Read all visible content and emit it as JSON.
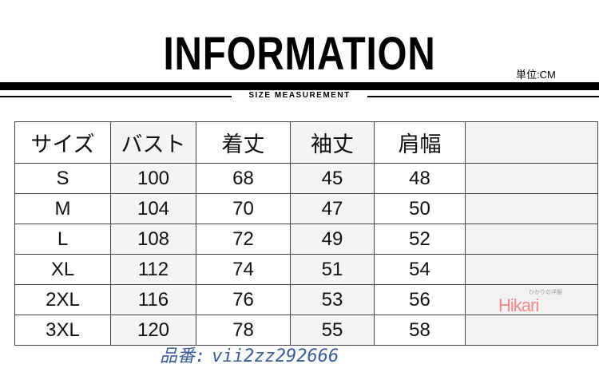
{
  "title": "INFORMATION",
  "unit": "単位:CM",
  "subtitle": "SIZE MEASUREMENT",
  "table": {
    "headers": [
      "サイズ",
      "バスト",
      "着丈",
      "袖丈",
      "肩幅",
      ""
    ],
    "rows": [
      [
        "S",
        "100",
        "68",
        "45",
        "48"
      ],
      [
        "M",
        "104",
        "70",
        "47",
        "50"
      ],
      [
        "L",
        "108",
        "72",
        "49",
        "52"
      ],
      [
        "XL",
        "112",
        "74",
        "51",
        "54"
      ],
      [
        "2XL",
        "116",
        "76",
        "53",
        "56"
      ],
      [
        "3XL",
        "120",
        "78",
        "55",
        "58"
      ]
    ]
  },
  "watermark": {
    "line1": "品番:",
    "line2": "vii2zz292666"
  },
  "logo": {
    "text": "Hikari",
    "tagline": "ひかりの洋服"
  }
}
